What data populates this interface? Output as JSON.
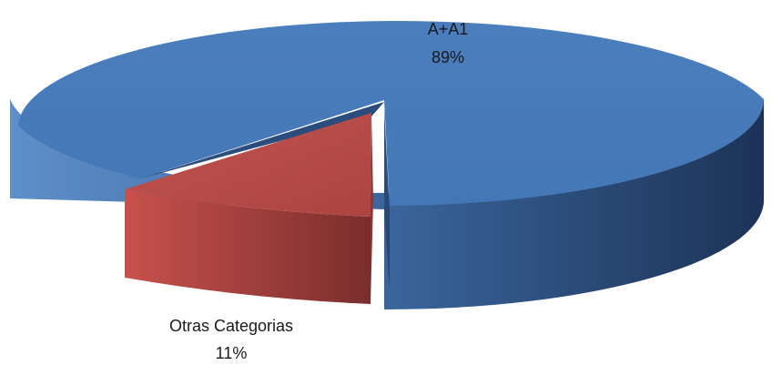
{
  "chart_data": {
    "type": "pie",
    "style": "3d-exploded",
    "title": "",
    "legend": "none",
    "slices": [
      {
        "label": "A+A1",
        "value_label": "89%",
        "value": 89,
        "color": "#4a7ebb",
        "exploded": false
      },
      {
        "label": "Otras Categorias",
        "value_label": "11%",
        "value": 11,
        "color": "#be4b48",
        "exploded": true
      }
    ]
  }
}
